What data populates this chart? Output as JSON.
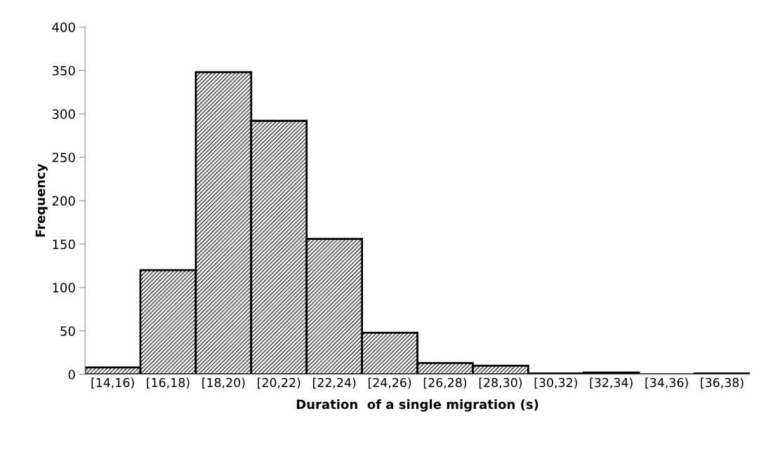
{
  "chart_data": {
    "type": "bar",
    "xlabel": "Duration  of a single migration (s)",
    "ylabel": "Frequency",
    "categories": [
      "[14,16)",
      "[16,18)",
      "[18,20)",
      "[20,22)",
      "[22,24)",
      "[24,26)",
      "[26,28)",
      "[28,30)",
      "[30,32)",
      "[32,34)",
      "[34,36)",
      "[36,38)"
    ],
    "values": [
      8,
      120,
      348,
      292,
      156,
      48,
      13,
      10,
      1,
      2,
      0,
      1
    ],
    "color": "#000000",
    "ylim": [
      0,
      400
    ],
    "yticks": [
      0,
      50,
      100,
      150,
      200,
      250,
      300,
      350,
      400
    ],
    "grid": false,
    "legend": false
  }
}
